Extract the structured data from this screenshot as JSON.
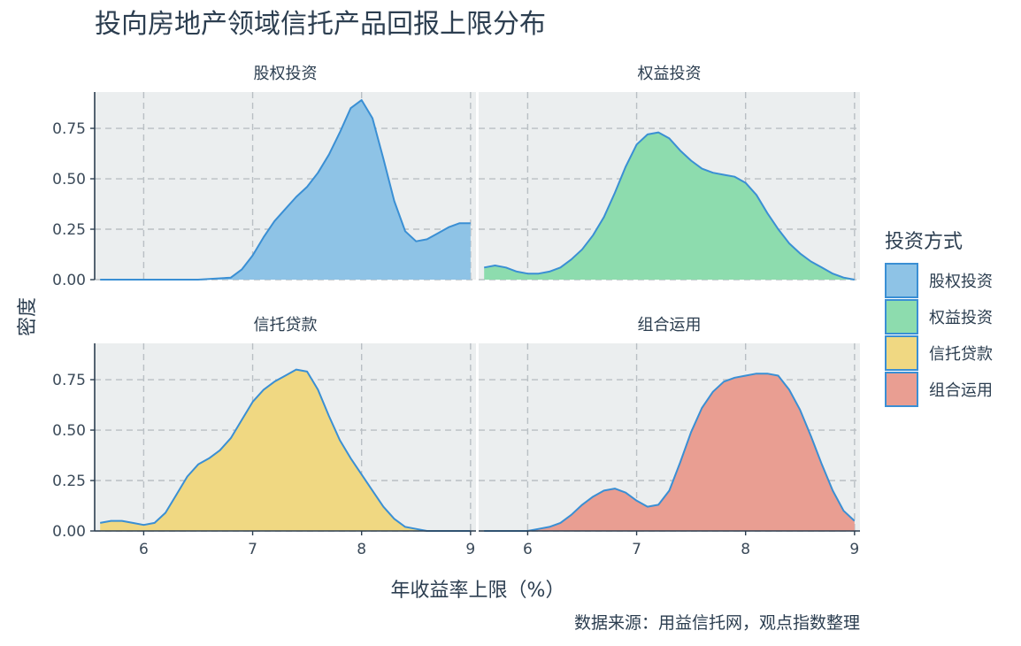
{
  "title": "投向房地产领域信托产品回报上限分布",
  "caption": "数据来源：用益信托网，观点指数整理",
  "chart_data": {
    "type": "area",
    "subtype": "density-facets",
    "xlabel": "年收益率上限（%）",
    "ylabel": "密度",
    "xlim": [
      5.55,
      9.05
    ],
    "ylim": [
      0,
      0.93
    ],
    "x_ticks": [
      6,
      7,
      8,
      9
    ],
    "y_ticks": [
      "0.00",
      "0.25",
      "0.50",
      "0.75"
    ],
    "grid": true,
    "outline_color": "#3a8fd4",
    "panel_background": "#ebeeef",
    "legend": {
      "title": "投资方式",
      "position": "right",
      "items": [
        {
          "label": "股权投资",
          "color": "#8ec3e6"
        },
        {
          "label": "权益投资",
          "color": "#8ddcae"
        },
        {
          "label": "信托贷款",
          "color": "#f0d882"
        },
        {
          "label": "组合运用",
          "color": "#e99e92"
        }
      ]
    },
    "series": [
      {
        "name": "股权投资",
        "color": "#8ec3e6",
        "x": [
          5.6,
          6.0,
          6.5,
          6.8,
          6.9,
          7.0,
          7.1,
          7.2,
          7.3,
          7.4,
          7.5,
          7.6,
          7.7,
          7.8,
          7.9,
          8.0,
          8.1,
          8.2,
          8.3,
          8.4,
          8.5,
          8.6,
          8.7,
          8.8,
          8.9,
          9.0
        ],
        "y": [
          0.0,
          0.0,
          0.0,
          0.01,
          0.05,
          0.12,
          0.21,
          0.29,
          0.35,
          0.41,
          0.46,
          0.53,
          0.62,
          0.73,
          0.85,
          0.89,
          0.8,
          0.6,
          0.39,
          0.24,
          0.19,
          0.2,
          0.23,
          0.26,
          0.28,
          0.28
        ]
      },
      {
        "name": "权益投资",
        "color": "#8ddcae",
        "x": [
          5.6,
          5.7,
          5.8,
          5.9,
          6.0,
          6.1,
          6.2,
          6.3,
          6.4,
          6.5,
          6.6,
          6.7,
          6.8,
          6.9,
          7.0,
          7.1,
          7.2,
          7.3,
          7.4,
          7.5,
          7.6,
          7.7,
          7.8,
          7.9,
          8.0,
          8.1,
          8.2,
          8.3,
          8.4,
          8.5,
          8.6,
          8.7,
          8.8,
          8.9,
          9.0
        ],
        "y": [
          0.06,
          0.07,
          0.06,
          0.04,
          0.03,
          0.03,
          0.04,
          0.06,
          0.1,
          0.15,
          0.22,
          0.31,
          0.43,
          0.56,
          0.67,
          0.72,
          0.73,
          0.7,
          0.64,
          0.59,
          0.55,
          0.53,
          0.52,
          0.51,
          0.48,
          0.42,
          0.33,
          0.25,
          0.18,
          0.13,
          0.09,
          0.06,
          0.03,
          0.01,
          0.0
        ]
      },
      {
        "name": "信托贷款",
        "color": "#f0d882",
        "x": [
          5.6,
          5.7,
          5.8,
          5.9,
          6.0,
          6.1,
          6.2,
          6.3,
          6.4,
          6.5,
          6.6,
          6.7,
          6.8,
          6.9,
          7.0,
          7.1,
          7.2,
          7.3,
          7.4,
          7.5,
          7.6,
          7.7,
          7.8,
          7.9,
          8.0,
          8.1,
          8.2,
          8.3,
          8.4,
          8.5,
          8.6,
          8.7,
          8.8,
          8.9,
          9.0
        ],
        "y": [
          0.04,
          0.05,
          0.05,
          0.04,
          0.03,
          0.04,
          0.09,
          0.18,
          0.27,
          0.33,
          0.36,
          0.4,
          0.46,
          0.55,
          0.64,
          0.7,
          0.74,
          0.77,
          0.8,
          0.79,
          0.7,
          0.57,
          0.45,
          0.36,
          0.28,
          0.2,
          0.12,
          0.06,
          0.02,
          0.01,
          0.0,
          0.0,
          0.0,
          0.0,
          0.0
        ]
      },
      {
        "name": "组合运用",
        "color": "#e99e92",
        "x": [
          5.6,
          5.8,
          6.0,
          6.1,
          6.2,
          6.3,
          6.4,
          6.5,
          6.6,
          6.7,
          6.8,
          6.9,
          7.0,
          7.1,
          7.2,
          7.3,
          7.4,
          7.5,
          7.6,
          7.7,
          7.8,
          7.9,
          8.0,
          8.1,
          8.2,
          8.3,
          8.4,
          8.5,
          8.6,
          8.7,
          8.8,
          8.9,
          9.0
        ],
        "y": [
          0.0,
          0.0,
          0.0,
          0.01,
          0.02,
          0.04,
          0.08,
          0.13,
          0.17,
          0.2,
          0.21,
          0.19,
          0.15,
          0.12,
          0.13,
          0.2,
          0.34,
          0.49,
          0.61,
          0.69,
          0.74,
          0.76,
          0.77,
          0.78,
          0.78,
          0.77,
          0.7,
          0.6,
          0.47,
          0.33,
          0.2,
          0.1,
          0.05
        ]
      }
    ]
  }
}
